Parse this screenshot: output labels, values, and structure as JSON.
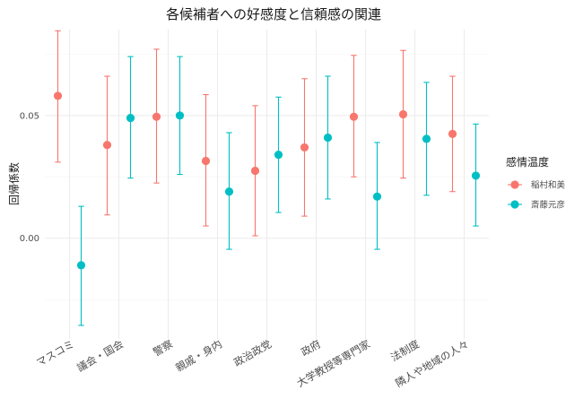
{
  "chart_data": {
    "type": "scatter",
    "title": "各候補者への好感度と信頼感の関連",
    "xlabel": "",
    "ylabel": "回帰係数",
    "categories": [
      "マスコミ",
      "議会・国会",
      "警察",
      "親戚・身内",
      "政治政党",
      "政府",
      "大学教授等専門家",
      "法制度",
      "隣人や地域の人々"
    ],
    "ylim": [
      -0.041,
      0.085
    ],
    "yticks": [
      0.0,
      0.05
    ],
    "ytick_labels": [
      "0.00",
      "0.05"
    ],
    "grid": true,
    "legend_position": "right",
    "legend_title": "感情温度",
    "series": [
      {
        "name": "稲村和美",
        "color": "#F8766D",
        "values": [
          0.058,
          0.038,
          0.0495,
          0.0315,
          0.0275,
          0.037,
          0.0495,
          0.0505,
          0.0425
        ],
        "lower": [
          0.031,
          0.0095,
          0.0225,
          0.005,
          0.001,
          0.009,
          0.025,
          0.0245,
          0.019
        ],
        "upper": [
          0.0845,
          0.066,
          0.077,
          0.0585,
          0.054,
          0.065,
          0.0745,
          0.0765,
          0.066
        ]
      },
      {
        "name": "斎藤元彦",
        "color": "#00BFC4",
        "values": [
          -0.011,
          0.049,
          0.05,
          0.019,
          0.034,
          0.041,
          0.017,
          0.0405,
          0.0255
        ],
        "lower": [
          -0.0355,
          0.0245,
          0.026,
          -0.0045,
          0.0105,
          0.016,
          -0.0045,
          0.0175,
          0.005
        ],
        "upper": [
          0.013,
          0.074,
          0.074,
          0.043,
          0.0575,
          0.066,
          0.039,
          0.0635,
          0.0465
        ]
      }
    ]
  }
}
